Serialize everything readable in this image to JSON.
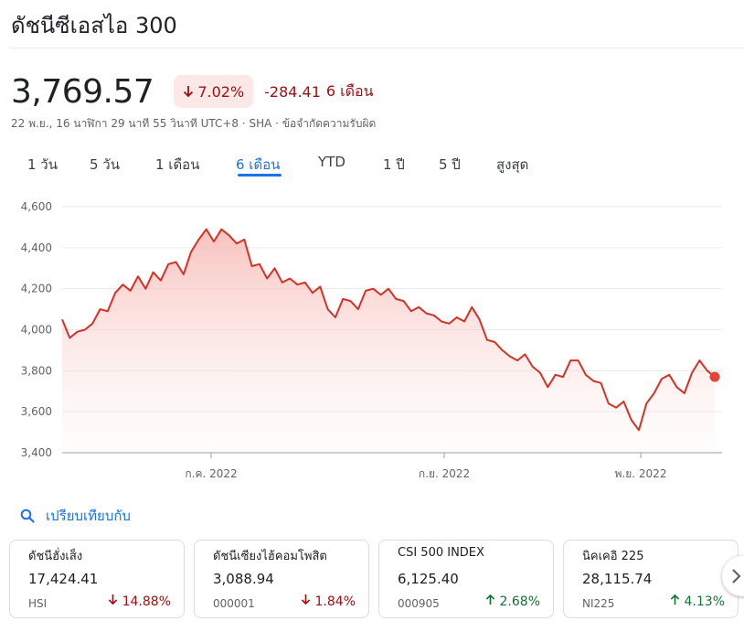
{
  "header": {
    "title": "ดัชนีซีเอสไอ 300"
  },
  "quote": {
    "price": "3,769.57",
    "change_pct": "7.02%",
    "change_abs": "-284.41",
    "change_period": "6 เดือน",
    "meta": "22 พ.ย., 16 นาฬิกา 29 นาที 55 วินาที UTC+8 · SHA · ข้อจำกัดความรับผิด"
  },
  "tabs": [
    {
      "label": "1 วัน"
    },
    {
      "label": "5 วัน"
    },
    {
      "label": "1 เดือน"
    },
    {
      "label": "6 เดือน",
      "active": true
    },
    {
      "label": "YTD"
    },
    {
      "label": "1 ปี"
    },
    {
      "label": "5 ปี"
    },
    {
      "label": "สูงสุด"
    }
  ],
  "chart_data": {
    "type": "area",
    "ylim": [
      3400,
      4600
    ],
    "y_ticks": [
      "4,600",
      "4,400",
      "4,200",
      "4,000",
      "3,800",
      "3,600",
      "3,400"
    ],
    "x_ticks": [
      "ก.ค. 2022",
      "ก.ย. 2022",
      "พ.ย. 2022"
    ],
    "grid": true,
    "colors": {
      "line": "#d93025",
      "fill": "#fce8e6",
      "grid": "#e8eaed"
    },
    "series": [
      {
        "values": [
          4050,
          3960,
          3990,
          4000,
          4030,
          4100,
          4090,
          4180,
          4220,
          4190,
          4260,
          4200,
          4280,
          4240,
          4320,
          4330,
          4270,
          4380,
          4440,
          4490,
          4430,
          4490,
          4460,
          4420,
          4440,
          4310,
          4320,
          4250,
          4300,
          4230,
          4250,
          4220,
          4230,
          4180,
          4210,
          4100,
          4060,
          4150,
          4140,
          4100,
          4190,
          4200,
          4170,
          4200,
          4150,
          4140,
          4090,
          4110,
          4080,
          4070,
          4040,
          4030,
          4060,
          4040,
          4110,
          4050,
          3950,
          3940,
          3900,
          3870,
          3850,
          3880,
          3820,
          3790,
          3720,
          3780,
          3770,
          3850,
          3850,
          3780,
          3750,
          3740,
          3640,
          3620,
          3650,
          3560,
          3510,
          3640,
          3690,
          3760,
          3780,
          3720,
          3690,
          3790,
          3850,
          3800,
          3770
        ]
      }
    ]
  },
  "compare": {
    "label": "เปรียบเทียบกับ",
    "icon": "search-icon"
  },
  "cards": [
    {
      "name": "ดัชนีฮั่งเส็ง",
      "price": "17,424.41",
      "ticker": "HSI",
      "change": "14.88%",
      "direction": "down"
    },
    {
      "name": "ดัชนีเซียงไฮ้คอมโพสิต",
      "price": "3,088.94",
      "ticker": "000001",
      "change": "1.84%",
      "direction": "down"
    },
    {
      "name": "CSI 500 INDEX",
      "price": "6,125.40",
      "ticker": "000905",
      "change": "2.68%",
      "direction": "up"
    },
    {
      "name": "นิคเคอิ 225",
      "price": "28,115.74",
      "ticker": "NI225",
      "change": "4.13%",
      "direction": "up"
    }
  ]
}
